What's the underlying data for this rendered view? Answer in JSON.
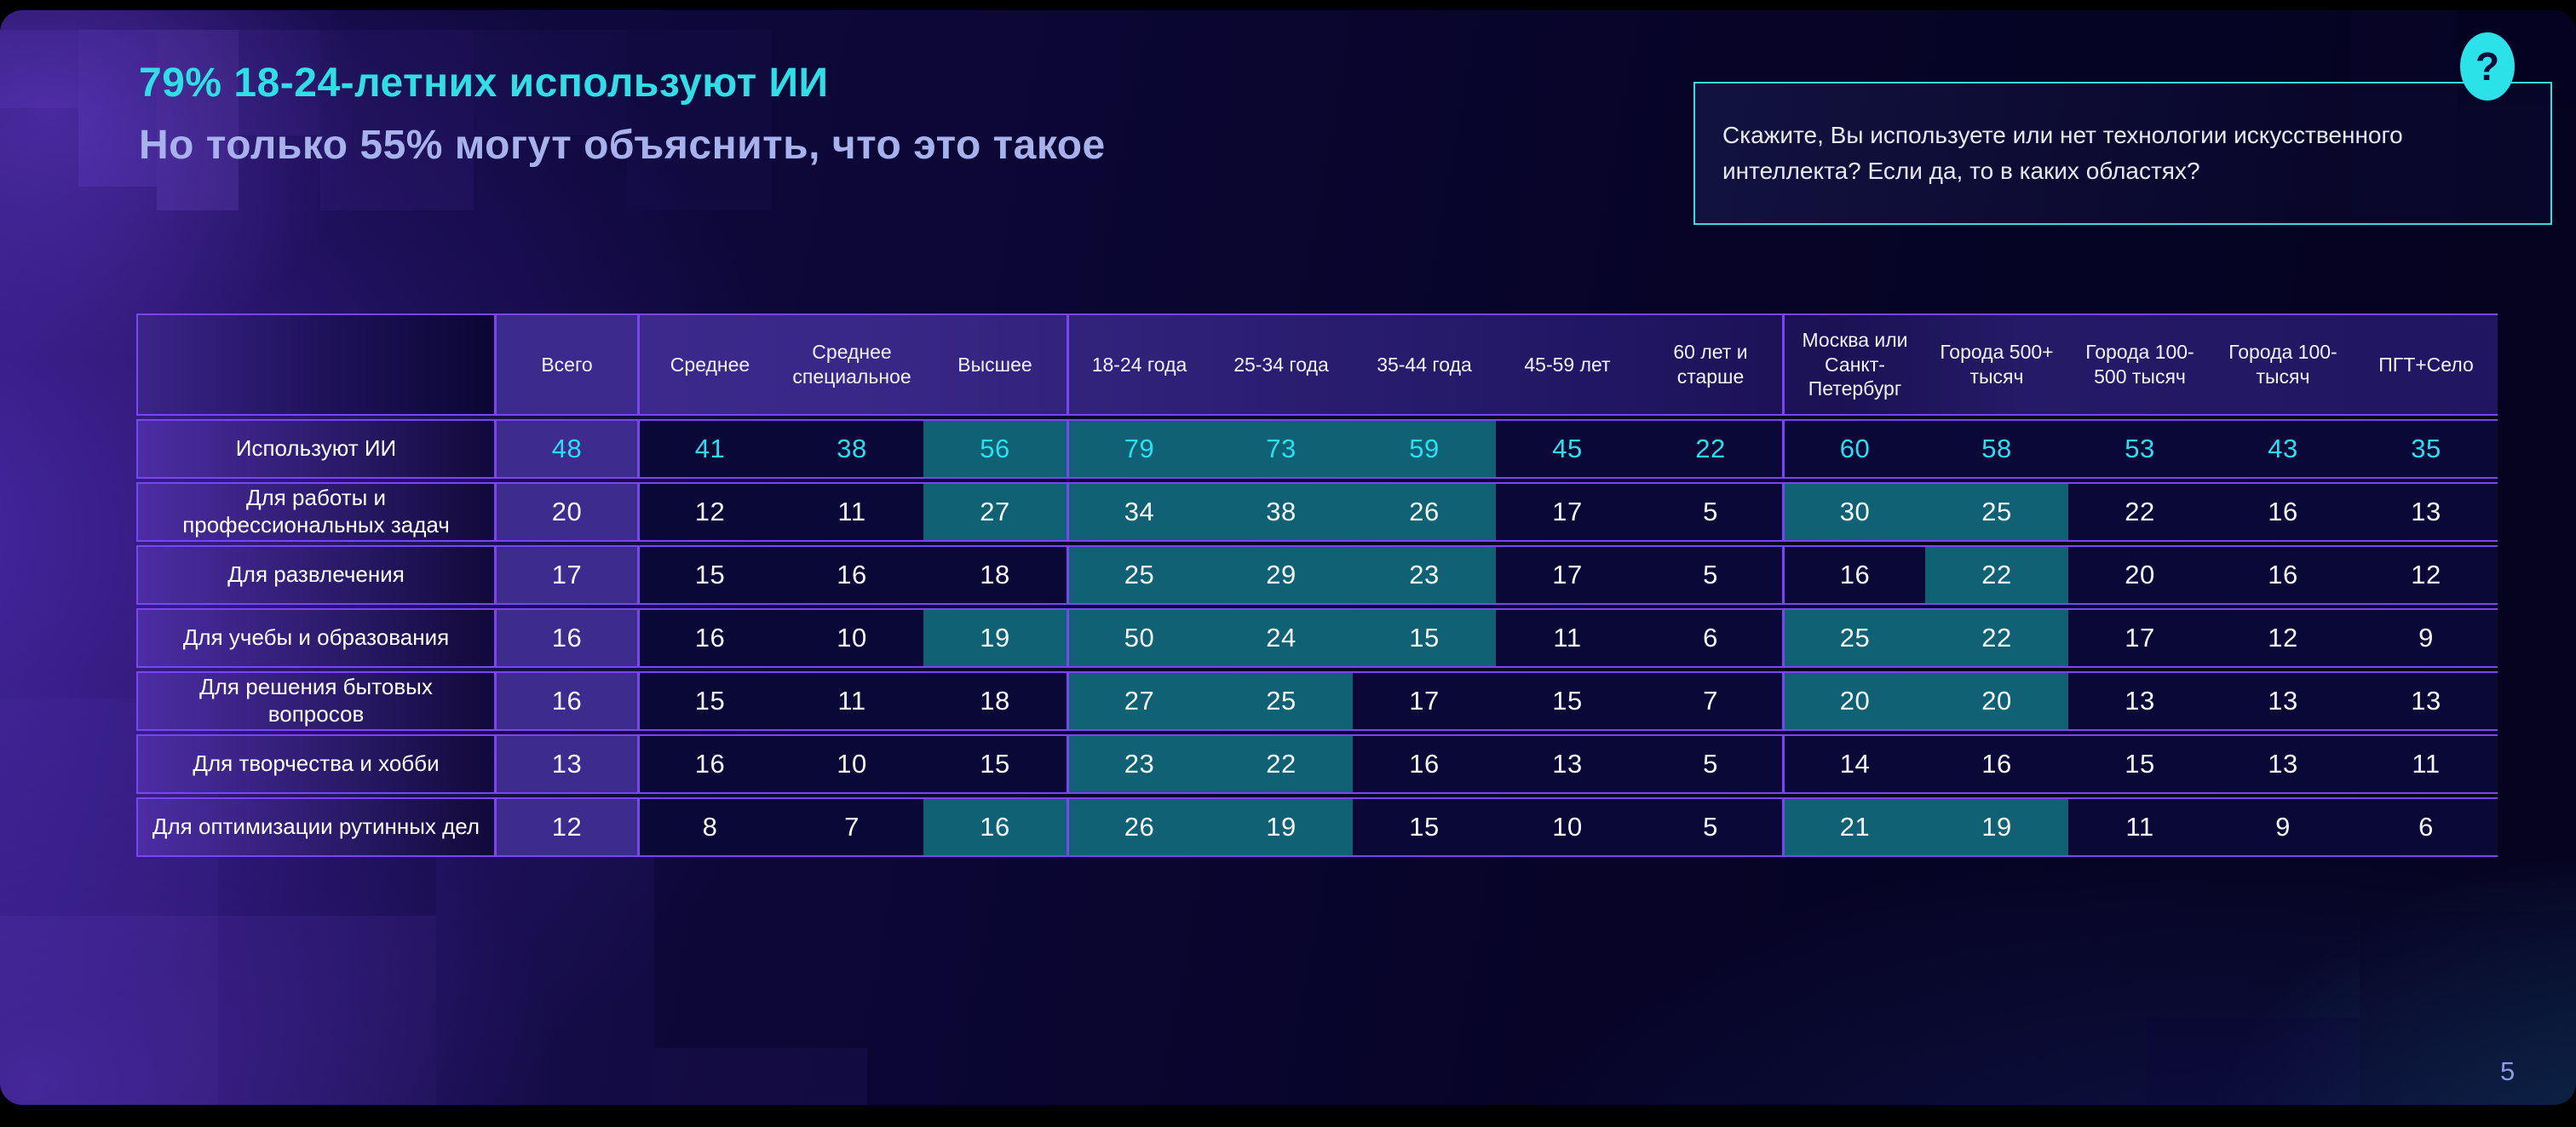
{
  "header": {
    "title_line1": "79% 18-24-летних используют ИИ",
    "title_line2": "Но только 55% могут объяснить, что это такое"
  },
  "question_box": {
    "text": "Скажите, Вы используете или нет технологии искусственного интеллекта? Если да, то в каких областях?",
    "icon_glyph": "?"
  },
  "page_number": "5",
  "colors": {
    "accent_cyan": "#2fdfe6",
    "accent_lavender": "#a7b1eb",
    "highlight_teal": "#0f6173",
    "cell_dark": "#0a0836",
    "cell_purple": "#3d2b8e",
    "border_violet": "#7b46f2"
  },
  "chart_data": {
    "type": "table",
    "title": "79% 18-24-летних используют ИИ. Но только 55% могут объяснить, что это такое",
    "question": "Скажите, Вы используете или нет технологии искусственного интеллекта? Если да, то в каких областях?",
    "columns": [
      "Всего",
      "Среднее",
      "Среднее специальное",
      "Высшее",
      "18-24 года",
      "25-34 года",
      "35-44 года",
      "45-59 лет",
      "60 лет и старше",
      "Москва или Санкт-Петербург",
      "Города 500+ тысяч",
      "Города 100-500 тысяч",
      "Города 100- тысяч",
      "ПГТ+Село"
    ],
    "rows": [
      {
        "label": "Используют ИИ",
        "values": [
          48,
          41,
          38,
          56,
          79,
          73,
          59,
          45,
          22,
          60,
          58,
          53,
          43,
          35
        ],
        "highlighted": [
          3,
          4,
          5,
          6
        ]
      },
      {
        "label": "Для работы и профессиональных задач",
        "values": [
          20,
          12,
          11,
          27,
          34,
          38,
          26,
          17,
          5,
          30,
          25,
          22,
          16,
          13
        ],
        "highlighted": [
          3,
          4,
          5,
          6,
          9,
          10
        ]
      },
      {
        "label": "Для развлечения",
        "values": [
          17,
          15,
          16,
          18,
          25,
          29,
          23,
          17,
          5,
          16,
          22,
          20,
          16,
          12
        ],
        "highlighted": [
          4,
          5,
          6,
          10
        ]
      },
      {
        "label": "Для учебы и образования",
        "values": [
          16,
          16,
          10,
          19,
          50,
          24,
          15,
          11,
          6,
          25,
          22,
          17,
          12,
          9
        ],
        "highlighted": [
          3,
          4,
          5,
          6,
          9,
          10
        ]
      },
      {
        "label": "Для решения бытовых вопросов",
        "values": [
          16,
          15,
          11,
          18,
          27,
          25,
          17,
          15,
          7,
          20,
          20,
          13,
          13,
          13
        ],
        "highlighted": [
          4,
          5,
          9,
          10
        ]
      },
      {
        "label": "Для творчества и хобби",
        "values": [
          13,
          16,
          10,
          15,
          23,
          22,
          16,
          13,
          5,
          14,
          16,
          15,
          13,
          11
        ],
        "highlighted": [
          4,
          5
        ]
      },
      {
        "label": "Для оптимизации рутинных дел",
        "values": [
          12,
          8,
          7,
          16,
          26,
          19,
          15,
          10,
          5,
          21,
          19,
          11,
          9,
          6
        ],
        "highlighted": [
          3,
          4,
          5,
          9,
          10
        ]
      }
    ]
  }
}
